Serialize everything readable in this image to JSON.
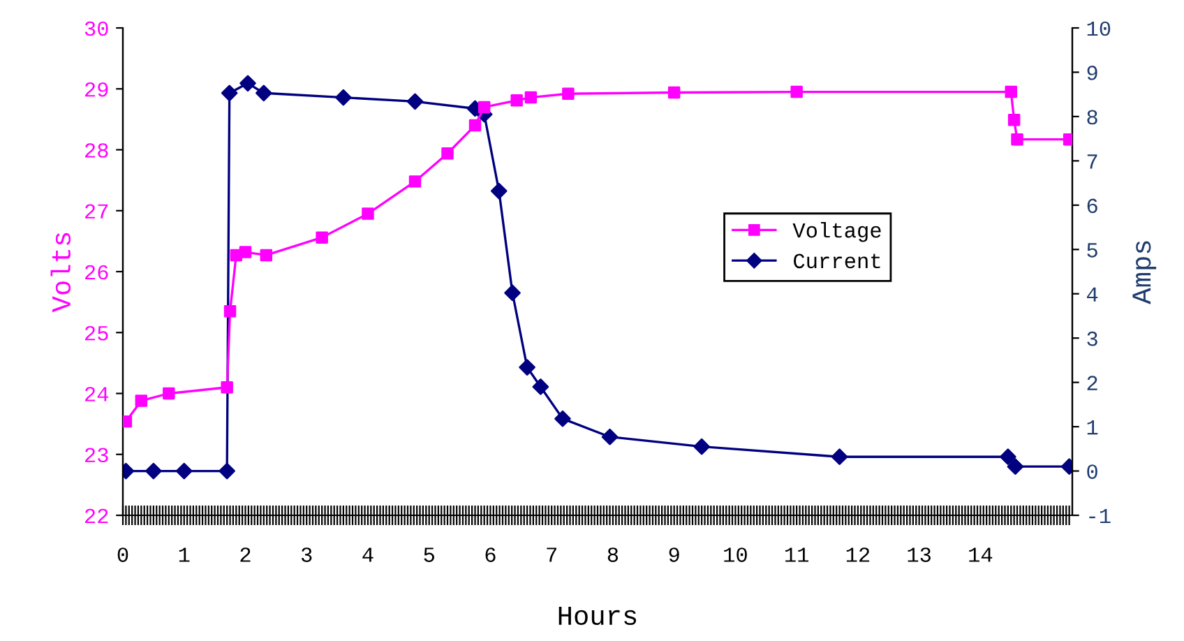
{
  "chart_data": {
    "type": "line",
    "xlabel": "Hours",
    "ylabel": "Volts",
    "y2label": "Amps",
    "xlim": [
      0,
      15.5
    ],
    "xticks": [
      0,
      1,
      2,
      3,
      4,
      5,
      6,
      7,
      8,
      9,
      10,
      11,
      12,
      13,
      14
    ],
    "ylim": [
      22,
      30
    ],
    "yticks": [
      22,
      23,
      24,
      25,
      26,
      27,
      28,
      29,
      30
    ],
    "y2lim": [
      -1,
      10
    ],
    "y2ticks": [
      {
        "value": -1,
        "label": "-1"
      },
      0,
      1,
      2,
      3,
      4,
      5,
      6,
      7,
      8,
      9,
      10
    ],
    "grid": false,
    "legend": "right",
    "line_style": "solid",
    "series": [
      {
        "name": "Voltage",
        "color": "#ff00ff",
        "marker": "square",
        "x": [
          0.05,
          0.3,
          0.75,
          1.7,
          1.75,
          1.85,
          2.0,
          2.34,
          3.25,
          4.0,
          4.77,
          5.3,
          5.75,
          5.9,
          6.43,
          6.66,
          7.27,
          9.0,
          11.0,
          14.5,
          14.55,
          14.6,
          15.45
        ],
        "values": [
          23.54,
          23.88,
          24.0,
          24.1,
          25.35,
          26.27,
          26.32,
          26.27,
          26.56,
          26.95,
          27.48,
          27.94,
          28.4,
          28.7,
          28.81,
          28.86,
          28.92,
          28.94,
          28.95,
          28.95,
          28.49,
          28.17,
          28.17
        ]
      },
      {
        "name": "Current",
        "color": "#000080",
        "marker": "diamond",
        "axis": "y2",
        "x": [
          0.05,
          0.5,
          1.0,
          1.7,
          1.74,
          2.04,
          2.3,
          3.6,
          4.77,
          5.75,
          5.9,
          6.14,
          6.36,
          6.6,
          6.82,
          7.18,
          7.95,
          9.45,
          11.7,
          14.45,
          14.57,
          15.45
        ],
        "values": [
          0,
          0,
          0,
          0,
          8.53,
          8.75,
          8.53,
          8.43,
          8.34,
          8.18,
          8.05,
          6.32,
          4.02,
          2.34,
          1.9,
          1.18,
          0.77,
          0.55,
          0.32,
          0.32,
          0.1,
          0.1
        ]
      }
    ]
  }
}
